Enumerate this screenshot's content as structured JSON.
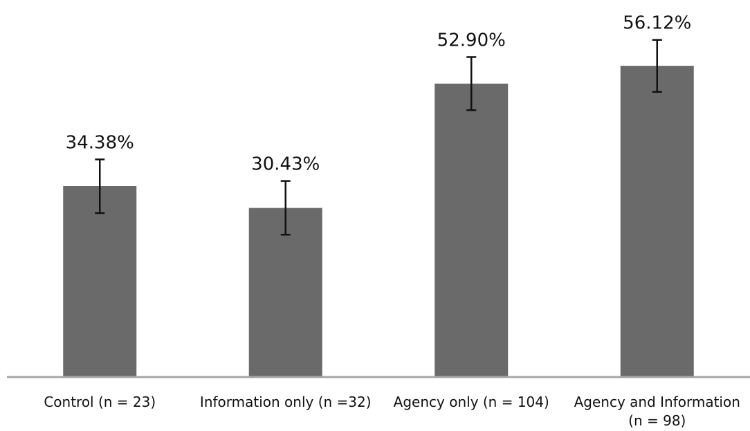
{
  "chart_data": {
    "type": "bar",
    "title": "",
    "xlabel": "",
    "ylabel": "",
    "ylim": [
      0,
      60
    ],
    "grid": false,
    "legend": "none",
    "bar_color": "#6a6a6a",
    "axis_color": "#a6a6a6",
    "error_color": "#111111",
    "categories": [
      [
        "Control (n = 23)"
      ],
      [
        "Information only (n =32)"
      ],
      [
        "Agency only (n = 104)"
      ],
      [
        "Agency and Information",
        "(n = 98)"
      ]
    ],
    "values": [
      34.38,
      30.43,
      52.9,
      56.12
    ],
    "value_labels": [
      "34.38%",
      "30.43%",
      "52.90%",
      "56.12%"
    ],
    "error_low": [
      29.5,
      25.6,
      48.1,
      51.4
    ],
    "error_high": [
      39.2,
      35.3,
      57.7,
      60.8
    ]
  }
}
